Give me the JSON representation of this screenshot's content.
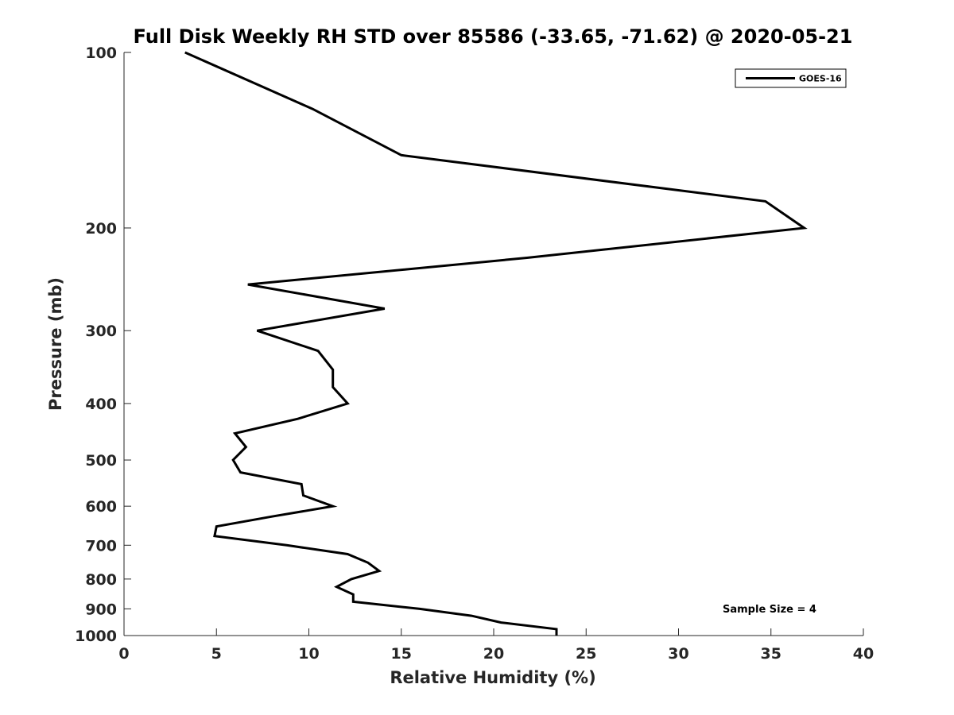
{
  "chart_data": {
    "type": "line",
    "title": "Full Disk Weekly RH STD over 85586 (-33.65, -71.62) @ 2020-05-21",
    "xlabel": "Relative Humidity (%)",
    "ylabel": "Pressure (mb)",
    "xlim": [
      0,
      40
    ],
    "ylim": [
      100,
      1000
    ],
    "yscale": "log",
    "yreversed": true,
    "xticks": [
      0,
      5,
      10,
      15,
      20,
      25,
      30,
      35,
      40
    ],
    "yticks": [
      100,
      200,
      300,
      400,
      500,
      600,
      700,
      800,
      900,
      1000
    ],
    "legend_position": "top-right",
    "grid": false,
    "series": [
      {
        "name": "GOES-16",
        "color": "#000000",
        "points": [
          {
            "x": 3.3,
            "p": 100
          },
          {
            "x": 10.2,
            "p": 125
          },
          {
            "x": 15.0,
            "p": 150
          },
          {
            "x": 34.7,
            "p": 180
          },
          {
            "x": 36.8,
            "p": 200
          },
          {
            "x": 21.8,
            "p": 225
          },
          {
            "x": 6.7,
            "p": 250
          },
          {
            "x": 14.1,
            "p": 275
          },
          {
            "x": 7.2,
            "p": 300
          },
          {
            "x": 10.5,
            "p": 325
          },
          {
            "x": 11.3,
            "p": 350
          },
          {
            "x": 11.3,
            "p": 375
          },
          {
            "x": 12.1,
            "p": 400
          },
          {
            "x": 9.4,
            "p": 425
          },
          {
            "x": 6.0,
            "p": 450
          },
          {
            "x": 6.6,
            "p": 475
          },
          {
            "x": 5.9,
            "p": 500
          },
          {
            "x": 6.3,
            "p": 525
          },
          {
            "x": 9.6,
            "p": 550
          },
          {
            "x": 9.7,
            "p": 575
          },
          {
            "x": 11.3,
            "p": 600
          },
          {
            "x": 8.0,
            "p": 625
          },
          {
            "x": 5.0,
            "p": 650
          },
          {
            "x": 4.9,
            "p": 675
          },
          {
            "x": 8.8,
            "p": 700
          },
          {
            "x": 12.1,
            "p": 725
          },
          {
            "x": 13.2,
            "p": 750
          },
          {
            "x": 13.8,
            "p": 775
          },
          {
            "x": 12.3,
            "p": 800
          },
          {
            "x": 11.5,
            "p": 825
          },
          {
            "x": 12.4,
            "p": 850
          },
          {
            "x": 12.4,
            "p": 875
          },
          {
            "x": 16.0,
            "p": 900
          },
          {
            "x": 18.8,
            "p": 925
          },
          {
            "x": 20.4,
            "p": 950
          },
          {
            "x": 23.4,
            "p": 975
          },
          {
            "x": 23.4,
            "p": 1000
          }
        ]
      }
    ],
    "annotation": "Sample Size = 4"
  }
}
